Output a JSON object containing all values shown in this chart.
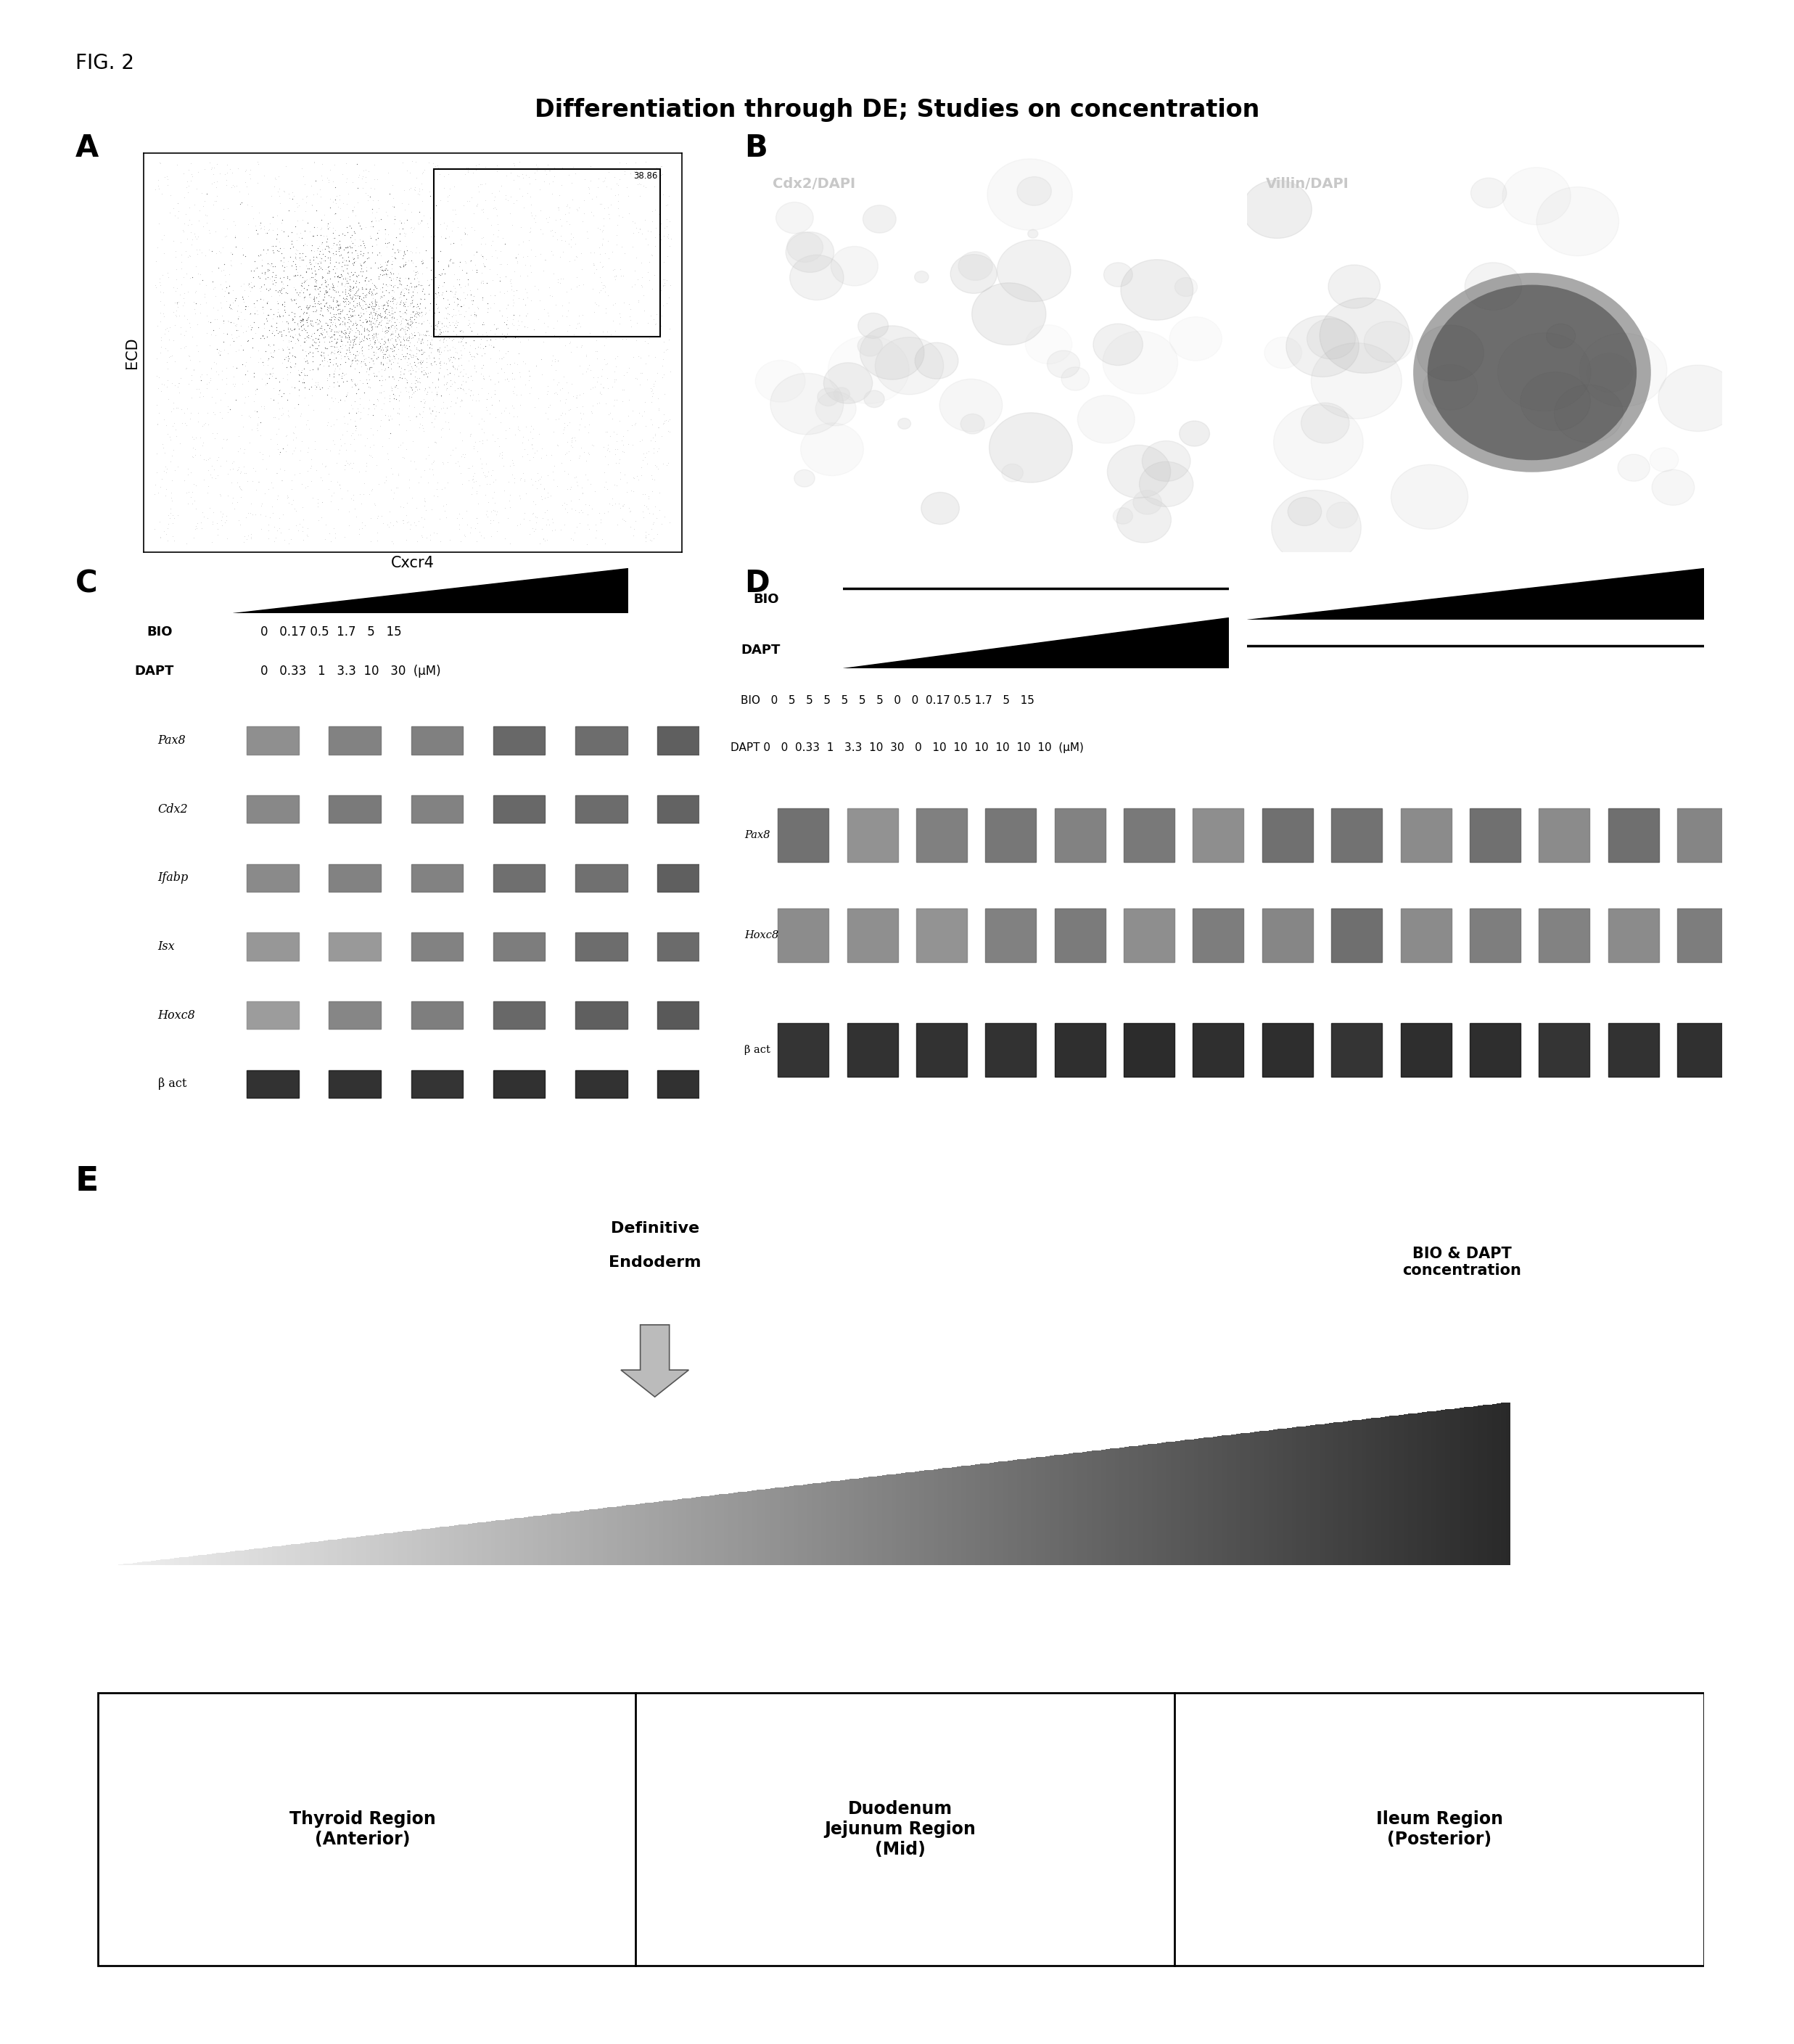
{
  "title": "Differentiation through DE; Studies on concentration",
  "fig_label": "FIG. 2",
  "panel_A_label": "A",
  "panel_B_label": "B",
  "panel_C_label": "C",
  "panel_D_label": "D",
  "panel_E_label": "E",
  "panel_A_xlabel": "Cxcr4",
  "panel_A_ylabel": "ECD",
  "panel_A_inner_text": "38.86",
  "panel_B_label1": "Cdx2/DAPI",
  "panel_B_label2": "Villin/DAPI",
  "panel_C_BIO_label": "BIO",
  "panel_C_DAPT_label": "DAPT",
  "panel_C_BIO_values": "0   0.17 0.5  1.7   5   15",
  "panel_C_DAPT_values": "0   0.33   1   3.3  10   30  (μM)",
  "panel_C_genes": [
    "Pax8",
    "Cdx2",
    "Ifabp",
    "Isx",
    "Hoxc8",
    "β act"
  ],
  "panel_D_BIO_label": "BIO",
  "panel_D_DAPT_label": "DAPT",
  "panel_D_BIO_values": "0   5   5   5   5   5   5   0   0  0.17 0.5 1.7   5   15",
  "panel_D_DAPT_values": "0   0  0.33  1   3.3  10  30   0   10  10  10  10  10  10  (μM)",
  "panel_D_genes": [
    "Pax8",
    "Hoxc8",
    "β act"
  ],
  "panel_E_circle_text1": "Definitive",
  "panel_E_circle_text2": "Endoderm",
  "panel_E_bio_dapt_label": "BIO & DAPT\nconcentration",
  "panel_E_regions": [
    "Thyroid Region\n(Anterior)",
    "Duodenum\nJejunum Region\n(Mid)",
    "Ileum Region\n(Posterior)"
  ],
  "background_color": "#ffffff",
  "text_color": "#000000"
}
